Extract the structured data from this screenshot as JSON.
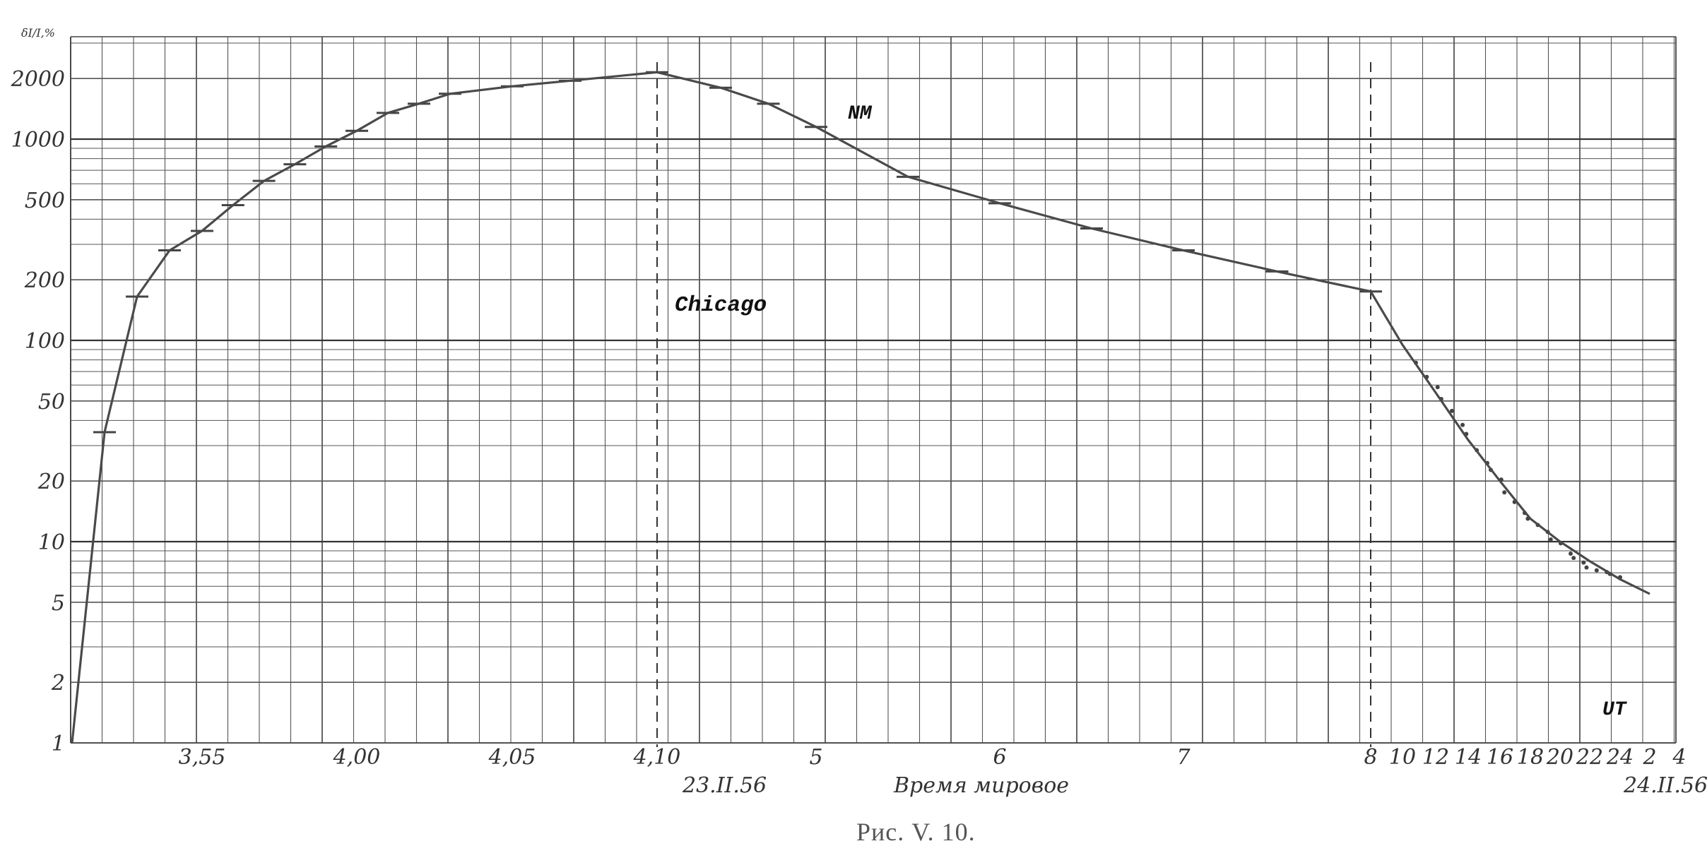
{
  "chart_data": {
    "type": "line",
    "yscale": "log",
    "ylim": [
      1,
      3000
    ],
    "ylabel": "δI/I,%",
    "yticks": [
      1,
      2,
      5,
      10,
      20,
      50,
      100,
      200,
      500,
      1000,
      2000
    ],
    "xlabel": "Время мировое",
    "x_tick_labels": [
      "3,55",
      "4,00",
      "4,05",
      "4,10",
      "5",
      "6",
      "7",
      "8",
      "10",
      "12",
      "14",
      "16",
      "18",
      "20",
      "22",
      "24",
      "2",
      "4"
    ],
    "date_labels": [
      "23.II.56",
      "24.II.56"
    ],
    "annotations": [
      "NM",
      "Chicago",
      "UT"
    ],
    "caption": "Рис. V. 10.",
    "grid": true,
    "series": [
      {
        "points": [
          {
            "t": "3:51",
            "v": 1
          },
          {
            "t": "3:52",
            "v": 35
          },
          {
            "t": "3:53",
            "v": 165
          },
          {
            "t": "3:54",
            "v": 280
          },
          {
            "t": "3:55",
            "v": 350
          },
          {
            "t": "3:56",
            "v": 470
          },
          {
            "t": "3:57",
            "v": 620
          },
          {
            "t": "3:58",
            "v": 750
          },
          {
            "t": "3:59",
            "v": 920
          },
          {
            "t": "4:00",
            "v": 1100
          },
          {
            "t": "4:01",
            "v": 1350
          },
          {
            "t": "4:02",
            "v": 1500
          },
          {
            "t": "4:03",
            "v": 1680
          },
          {
            "t": "4:05",
            "v": 1830
          },
          {
            "t": "4:07",
            "v": 1950
          },
          {
            "t": "4:10",
            "v": 2150
          },
          {
            "t": "4:30",
            "v": 1800
          },
          {
            "t": "4:45",
            "v": 1500
          },
          {
            "t": "5:00",
            "v": 1150
          },
          {
            "t": "5:30",
            "v": 650
          },
          {
            "t": "6:00",
            "v": 480
          },
          {
            "t": "6:30",
            "v": 360
          },
          {
            "t": "7:00",
            "v": 280
          },
          {
            "t": "7:30",
            "v": 220
          },
          {
            "t": "8:00",
            "v": 175
          },
          {
            "t": "10:00",
            "v": 95
          },
          {
            "t": "12:00",
            "v": 55
          },
          {
            "t": "14:00",
            "v": 32
          },
          {
            "t": "16:00",
            "v": 20
          },
          {
            "t": "18:00",
            "v": 13
          },
          {
            "t": "20:00",
            "v": 10
          },
          {
            "t": "22:00",
            "v": 8
          },
          {
            "t": "24:00",
            "v": 6.5
          },
          {
            "t": "02:00",
            "v": 5.5
          }
        ]
      }
    ],
    "scatter": [
      {
        "t": "11:00",
        "v": 75
      },
      {
        "t": "11:30",
        "v": 68
      },
      {
        "t": "12:00",
        "v": 60
      },
      {
        "t": "12:30",
        "v": 52
      },
      {
        "t": "13:00",
        "v": 45
      },
      {
        "t": "13:30",
        "v": 38
      },
      {
        "t": "14:00",
        "v": 34
      },
      {
        "t": "14:30",
        "v": 28
      },
      {
        "t": "15:00",
        "v": 24
      },
      {
        "t": "15:30",
        "v": 22
      },
      {
        "t": "16:00",
        "v": 21
      },
      {
        "t": "16:30",
        "v": 18
      },
      {
        "t": "17:00",
        "v": 16
      },
      {
        "t": "17:30",
        "v": 14
      },
      {
        "t": "18:00",
        "v": 13
      },
      {
        "t": "18:30",
        "v": 12
      },
      {
        "t": "19:00",
        "v": 11
      },
      {
        "t": "19:30",
        "v": 10
      },
      {
        "t": "20:00",
        "v": 9.5
      },
      {
        "t": "20:30",
        "v": 9
      },
      {
        "t": "21:00",
        "v": 8.5
      },
      {
        "t": "21:30",
        "v": 8
      },
      {
        "t": "22:00",
        "v": 7.5
      },
      {
        "t": "22:30",
        "v": 7.2
      },
      {
        "t": "23:00",
        "v": 7
      },
      {
        "t": "23:30",
        "v": 6.8
      },
      {
        "t": "24:00",
        "v": 6.5
      }
    ],
    "vertical_markers": [
      "4:10",
      "8:00"
    ]
  }
}
